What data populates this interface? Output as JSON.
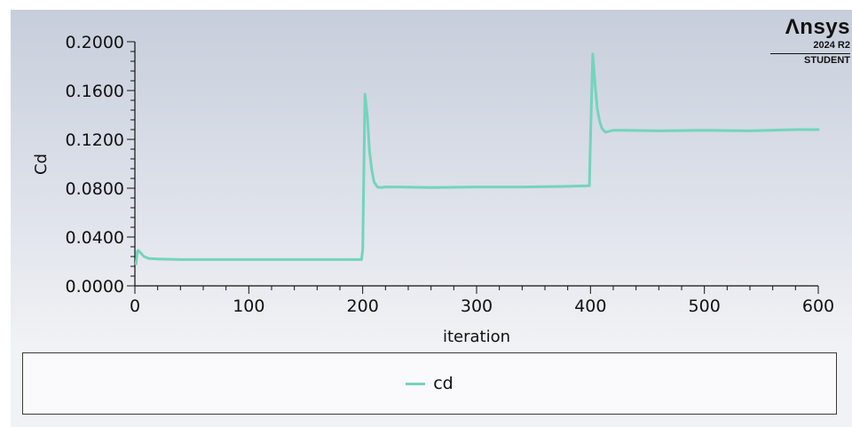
{
  "branding": {
    "name": "Λnsys",
    "version": "2024 R2",
    "edition": "STUDENT"
  },
  "legend": {
    "label": "cd",
    "color": "#73d4bc"
  },
  "chart_data": {
    "type": "line",
    "xlabel": "iteration",
    "ylabel": "Cd",
    "xlim": [
      0,
      600
    ],
    "ylim": [
      0,
      0.2
    ],
    "x_ticks": [
      "0",
      "100",
      "200",
      "300",
      "400",
      "500",
      "600"
    ],
    "y_ticks": [
      "0.0000",
      "0.0400",
      "0.0800",
      "0.1200",
      "0.1600",
      "0.2000"
    ],
    "grid": false,
    "legend_position": "bottom",
    "series": [
      {
        "name": "cd",
        "color": "#73d4bc",
        "x": [
          1,
          2,
          3,
          5,
          8,
          12,
          20,
          40,
          80,
          120,
          160,
          199,
          200,
          202,
          204,
          206,
          208,
          210,
          213,
          216,
          220,
          230,
          260,
          300,
          340,
          380,
          399,
          400,
          402,
          404,
          406,
          408,
          410,
          413,
          416,
          420,
          430,
          460,
          500,
          540,
          580,
          600
        ],
        "y": [
          0.018,
          0.028,
          0.029,
          0.027,
          0.024,
          0.0225,
          0.022,
          0.0215,
          0.0215,
          0.0215,
          0.0215,
          0.0215,
          0.03,
          0.157,
          0.14,
          0.11,
          0.095,
          0.085,
          0.081,
          0.0805,
          0.081,
          0.081,
          0.0805,
          0.081,
          0.081,
          0.0815,
          0.082,
          0.12,
          0.19,
          0.165,
          0.145,
          0.135,
          0.129,
          0.126,
          0.1265,
          0.1275,
          0.1275,
          0.127,
          0.1275,
          0.127,
          0.128,
          0.128
        ]
      }
    ]
  }
}
